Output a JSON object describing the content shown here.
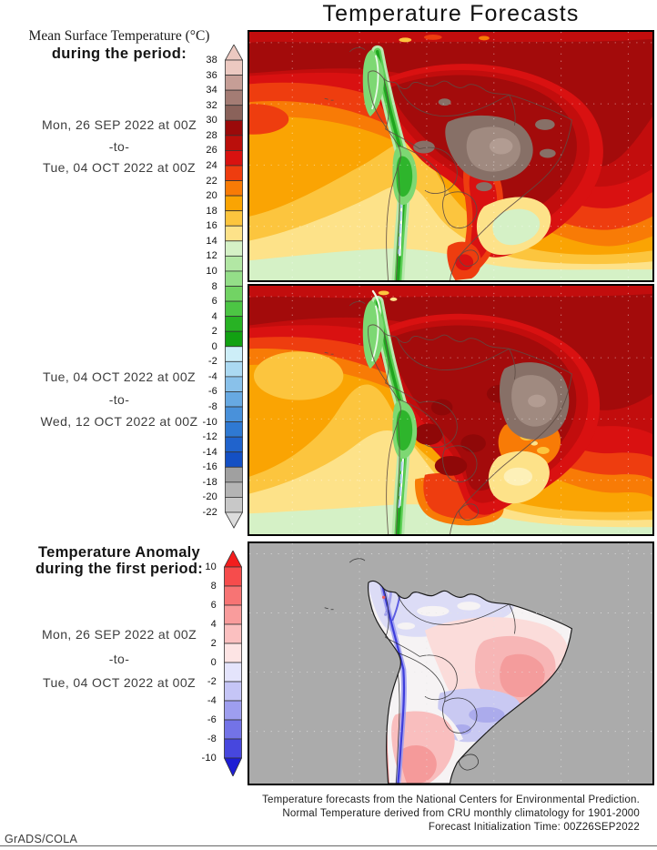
{
  "title": "Temperature Forecasts",
  "left_column": {
    "heading_serif": "Mean Surface Temperature (°C)",
    "heading_bold": "during the period:",
    "period1": {
      "start": "Mon, 26 SEP 2022 at 00Z",
      "sep": "-to-",
      "end": "Tue, 04 OCT 2022 at 00Z"
    },
    "period2": {
      "start": "Tue, 04 OCT 2022 at 00Z",
      "sep": "-to-",
      "end": "Wed, 12 OCT 2022 at 00Z"
    },
    "anomaly_heading_line1": "Temperature Anomaly",
    "anomaly_heading_line2": "during the first period:",
    "period3": {
      "start": "Mon, 26 SEP 2022 at 00Z",
      "sep": "-to-",
      "end": "Tue, 04 OCT 2022 at 00Z"
    }
  },
  "temperature_colorbar": {
    "unit": "°C",
    "ticks": [
      "38",
      "36",
      "34",
      "32",
      "30",
      "28",
      "26",
      "24",
      "22",
      "20",
      "18",
      "16",
      "14",
      "12",
      "10",
      "8",
      "6",
      "4",
      "2",
      "0",
      "-2",
      "-4",
      "-6",
      "-8",
      "-10",
      "-12",
      "-14",
      "-16",
      "-18",
      "-20",
      "-22"
    ],
    "segment_colors": [
      "#ecc9c1",
      "#c69e96",
      "#a47c74",
      "#8a625a",
      "#9b0a0a",
      "#ba0f0b",
      "#d81210",
      "#ee3d0f",
      "#f87b06",
      "#faa403",
      "#fcc53e",
      "#fde289",
      "#d5f1c6",
      "#b2e7a4",
      "#94de88",
      "#72d364",
      "#4cc544",
      "#28b224",
      "#12a112",
      "#cdeef8",
      "#abd9f2",
      "#89c1ea",
      "#67a9e2",
      "#4991da",
      "#2f79d2",
      "#2063cc",
      "#1450c4",
      "#a0a0a0",
      "#b4b4b4",
      "#c8c8c8"
    ],
    "arrow_top_color": "#ecc9c1",
    "arrow_bottom_color": "#dcdcdc"
  },
  "anomaly_colorbar": {
    "unit": "°C",
    "ticks": [
      "10",
      "8",
      "6",
      "4",
      "2",
      "0",
      "-2",
      "-4",
      "-6",
      "-8",
      "-10"
    ],
    "segment_colors": [
      "#f64c4c",
      "#f77474",
      "#f99c9c",
      "#fbc0c0",
      "#fde4e4",
      "#e4e4fc",
      "#c5c5f6",
      "#9e9eef",
      "#7373e7",
      "#4747de"
    ],
    "arrow_top_color": "#f31d1d",
    "arrow_bottom_color": "#1d1dd4"
  },
  "footer": {
    "line1": "Temperature forecasts from the National Centers for Environmental Prediction.",
    "line2": "Normal Temperature derived from CRU monthly climatology for 1901-2000",
    "line3": "Forecast Initialization Time: 00Z26SEP2022",
    "credit": "GrADS/COLA"
  },
  "colors": {
    "map_border": "#000000",
    "anomaly_ocean_gray": "#ababab",
    "page_background": "#ffffff"
  },
  "chart_data": [
    {
      "type": "heatmap",
      "title": "Mean Surface Temperature (°C) during the period Mon, 26 SEP 2022 at 00Z to Tue, 04 OCT 2022 at 00Z",
      "region": "South America",
      "units": "°C",
      "scale_range": [
        -22,
        38
      ],
      "scale_step": 2,
      "legend_position": "left",
      "grid": "dotted"
    },
    {
      "type": "heatmap",
      "title": "Mean Surface Temperature (°C) during the period Tue, 04 OCT 2022 at 00Z to Wed, 12 OCT 2022 at 00Z",
      "region": "South America",
      "units": "°C",
      "scale_range": [
        -22,
        38
      ],
      "scale_step": 2,
      "legend_position": "left",
      "grid": "dotted"
    },
    {
      "type": "heatmap",
      "title": "Temperature Anomaly during the first period Mon, 26 SEP 2022 at 00Z to Tue, 04 OCT 2022 at 00Z",
      "region": "South America (land only, ocean masked gray)",
      "units": "°C",
      "scale_range": [
        -10,
        10
      ],
      "scale_step": 2,
      "legend_position": "left",
      "grid": "dotted"
    }
  ]
}
